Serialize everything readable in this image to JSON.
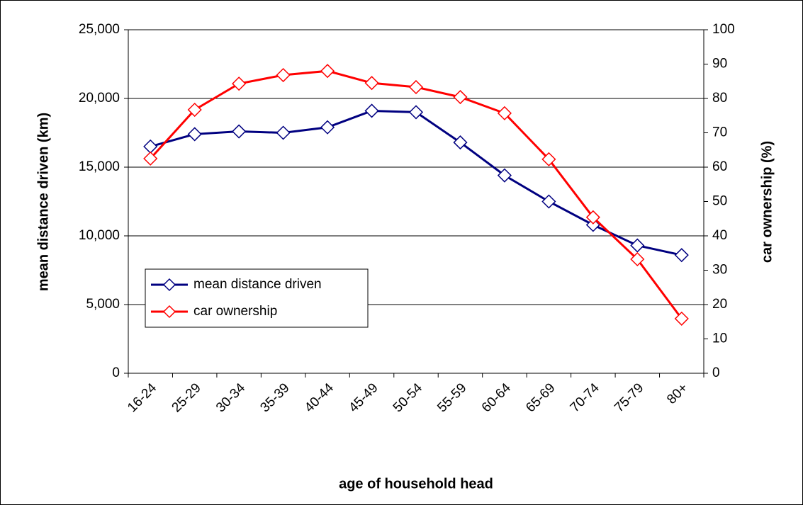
{
  "chart_data": {
    "type": "line",
    "xlabel": "age of household head",
    "ylabel": "mean distance driven (km)",
    "y2label": "car ownership (%)",
    "categories": [
      "16-24",
      "25-29",
      "30-34",
      "35-39",
      "40-44",
      "45-49",
      "50-54",
      "55-59",
      "60-64",
      "65-69",
      "70-74",
      "75-79",
      "80+"
    ],
    "series": [
      {
        "name": "mean distance driven",
        "color": "#000080",
        "values": [
          16500,
          17400,
          17600,
          17500,
          17900,
          19100,
          19000,
          16800,
          14400,
          12500,
          10800,
          9300,
          8600
        ]
      },
      {
        "name": "car ownership",
        "color": "#ff0000",
        "axis": "y2",
        "values": [
          62.5,
          76.7,
          84.3,
          86.8,
          88.0,
          84.5,
          83.3,
          80.4,
          75.7,
          62.3,
          45.4,
          33.2,
          15.9
        ]
      }
    ],
    "ylim": [
      0,
      25000
    ],
    "yticks": [
      0,
      {
        "value": 5000,
        "label": "5,000"
      },
      {
        "value": 10000,
        "label": "10,000"
      },
      {
        "value": 15000,
        "label": "15,000"
      },
      {
        "value": 20000,
        "label": "20,000"
      },
      {
        "value": 25000,
        "label": "25,000"
      }
    ],
    "y2lim": [
      0,
      100
    ],
    "y2ticks": [
      0,
      10,
      20,
      30,
      40,
      50,
      60,
      70,
      80,
      90,
      100
    ],
    "grid": true,
    "legend": "lower-left"
  }
}
